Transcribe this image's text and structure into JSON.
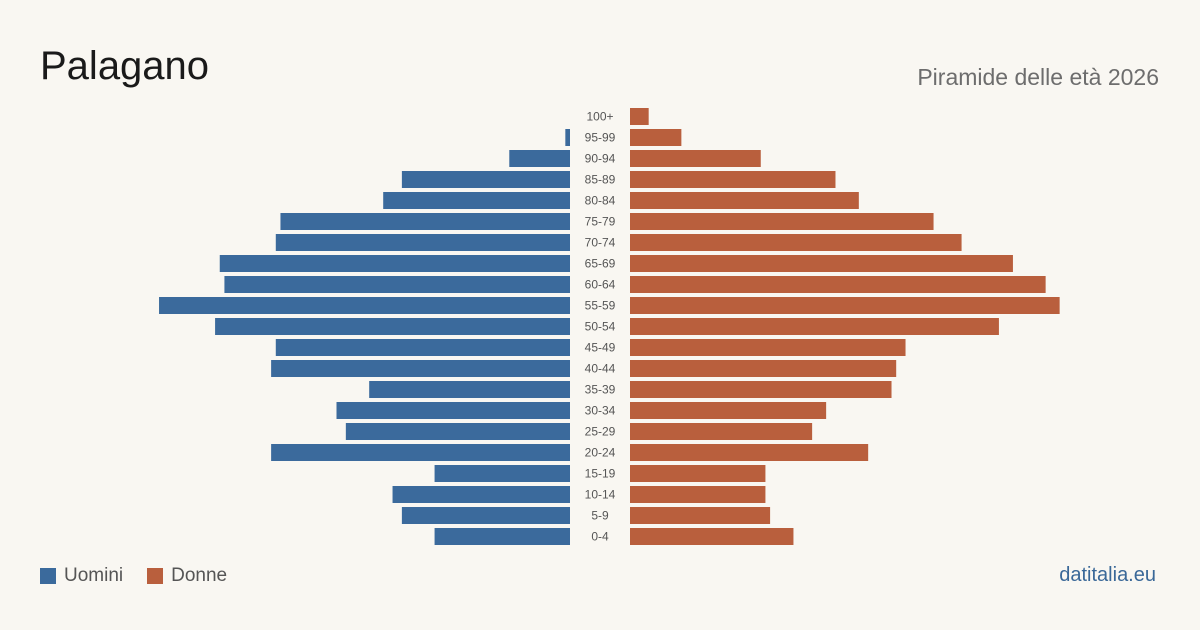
{
  "header": {
    "title": "Palagano",
    "subtitle": "Piramide delle età 2026"
  },
  "legend": {
    "men_label": "Uomini",
    "women_label": "Donne"
  },
  "source": "datitalia.eu",
  "colors": {
    "men": "#3b6a9c",
    "women": "#b95f3d",
    "background": "#f9f7f2"
  },
  "chart_data": {
    "type": "bar",
    "orientation": "horizontal-pyramid",
    "categories": [
      "100+",
      "95-99",
      "90-94",
      "85-89",
      "80-84",
      "75-79",
      "70-74",
      "65-69",
      "60-64",
      "55-59",
      "50-54",
      "45-49",
      "40-44",
      "35-39",
      "30-34",
      "25-29",
      "20-24",
      "15-19",
      "10-14",
      "5-9",
      "0-4"
    ],
    "series": [
      {
        "name": "Uomini",
        "values": [
          0,
          1,
          13,
          36,
          40,
          62,
          63,
          75,
          74,
          88,
          76,
          63,
          64,
          43,
          50,
          48,
          64,
          29,
          38,
          36,
          29
        ]
      },
      {
        "name": "Donne",
        "values": [
          4,
          11,
          28,
          44,
          49,
          65,
          71,
          82,
          89,
          92,
          79,
          59,
          57,
          56,
          42,
          39,
          51,
          29,
          29,
          30,
          35
        ]
      }
    ],
    "grid": false,
    "legend_position": "bottom-left"
  }
}
